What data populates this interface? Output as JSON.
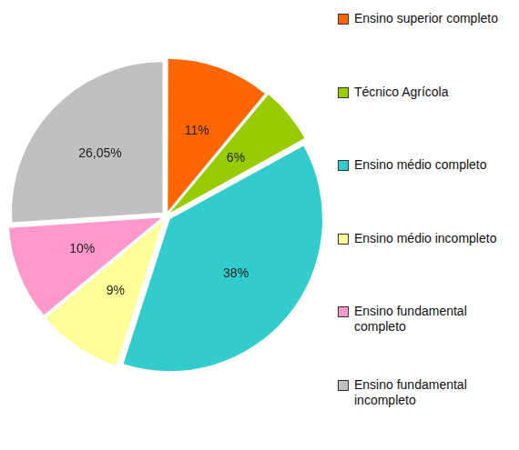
{
  "chart_data": {
    "type": "pie",
    "categories": [
      "Ensino superior completo",
      "Técnico Agrícola",
      "Ensino médio completo",
      "Ensino médio incompleto",
      "Ensino fundamental completo",
      "Ensino fundamental incompleto"
    ],
    "values": [
      11,
      6,
      38,
      9,
      10,
      26.05
    ],
    "value_labels": [
      "11%",
      "6%",
      "38%",
      "9%",
      "10%",
      "26,05%"
    ],
    "colors": [
      "#ff6600",
      "#99cc00",
      "#33cccc",
      "#ffff99",
      "#ff99cc",
      "#c0c0c0"
    ],
    "data_labels": true,
    "legend": "right"
  }
}
